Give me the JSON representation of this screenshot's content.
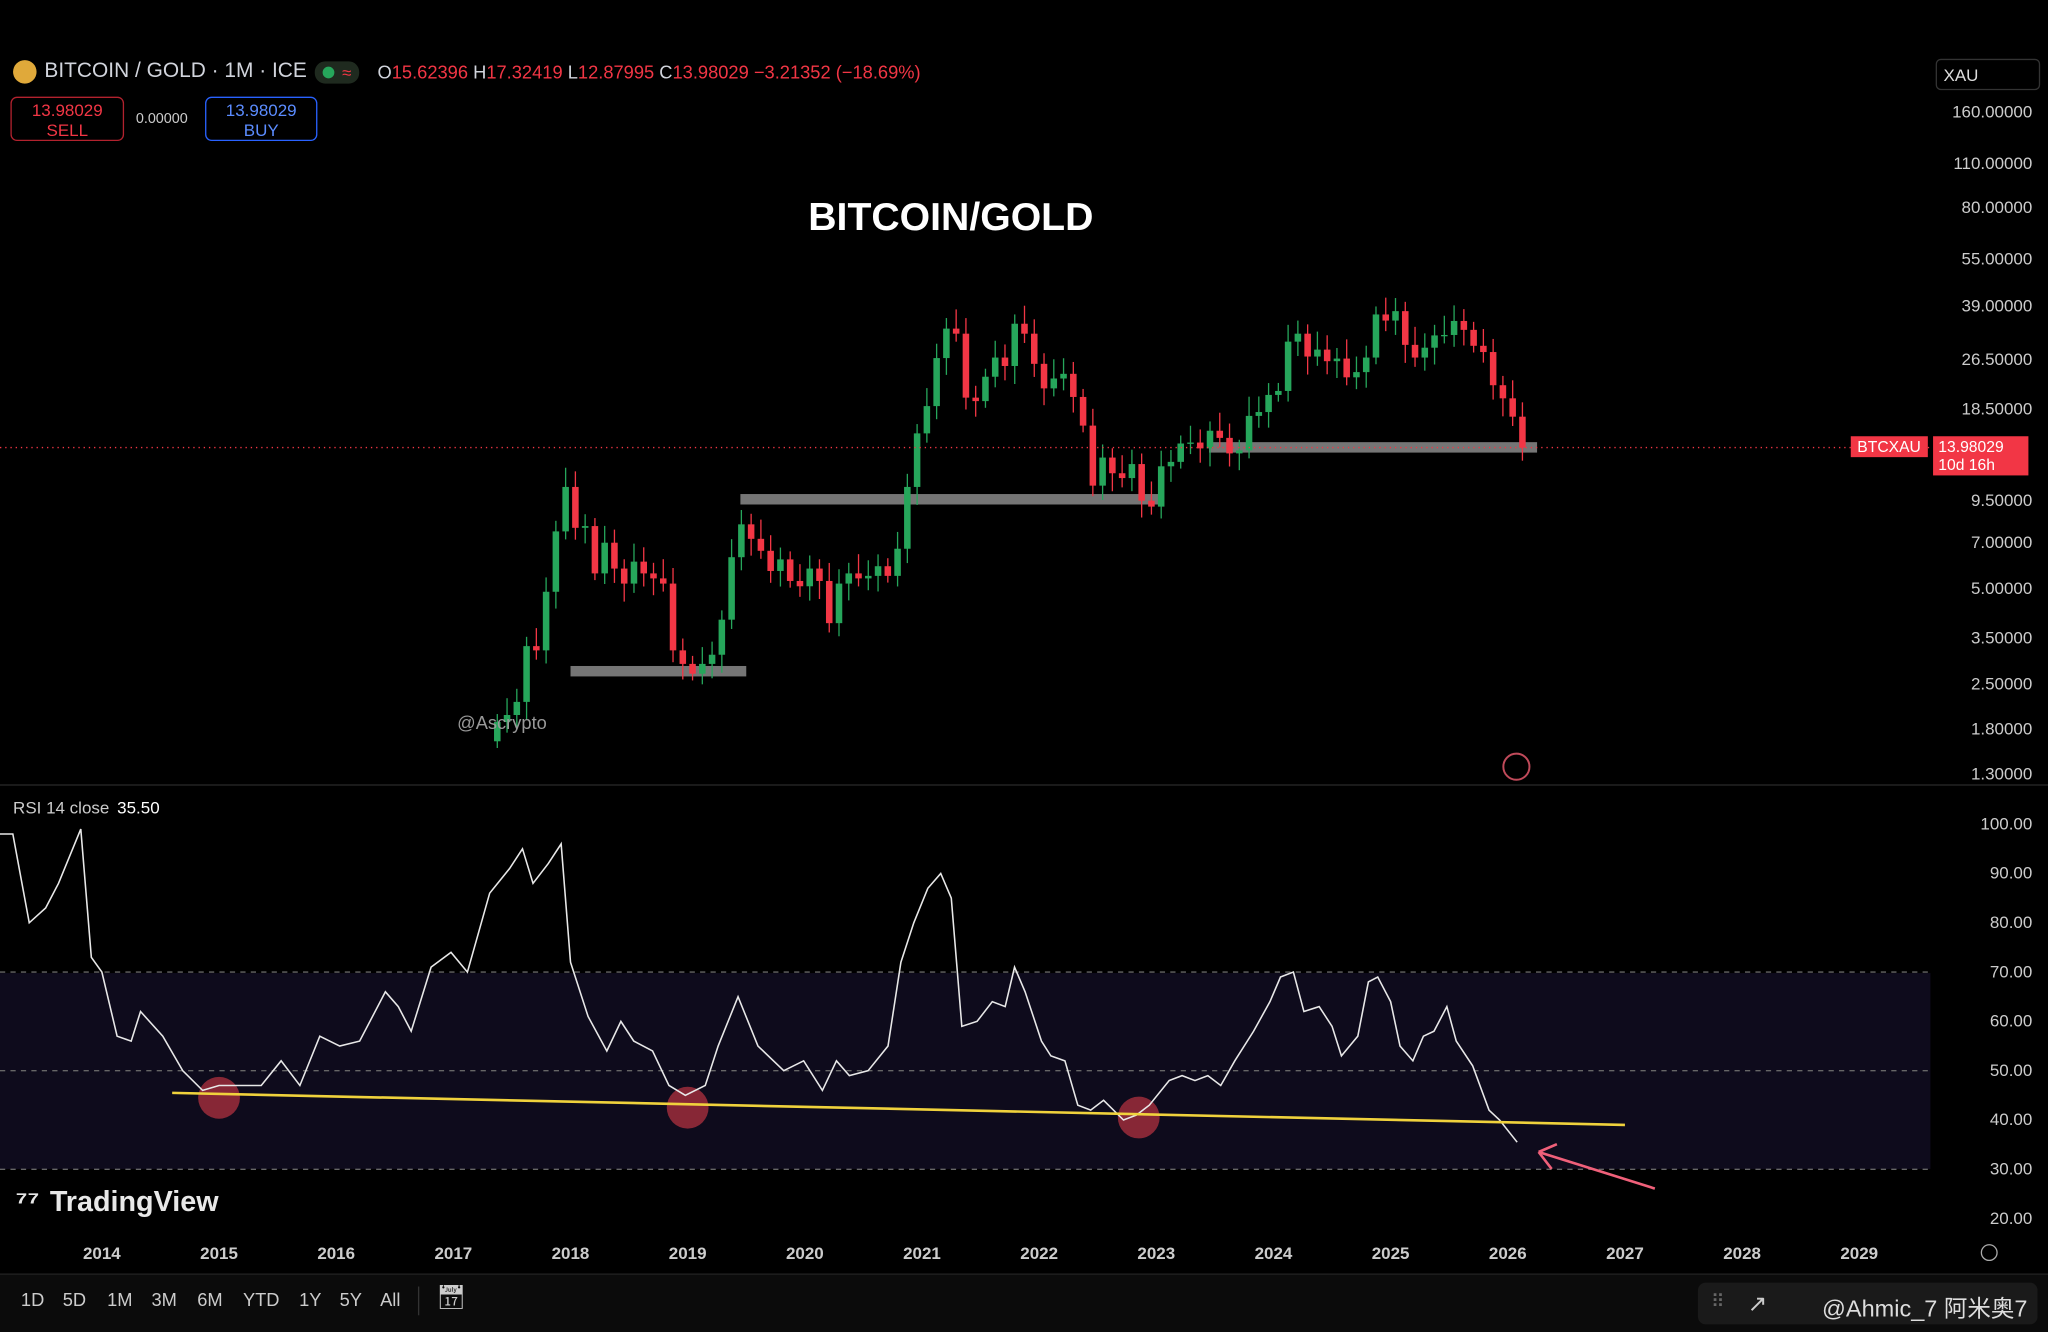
{
  "header": {
    "symbol": "BITCOIN / GOLD · 1M · ICE",
    "open_label": "O",
    "open": "15.62396",
    "high_label": "H",
    "high": "17.32419",
    "low_label": "L",
    "low": "12.87995",
    "close_label": "C",
    "close": "13.98029",
    "change": "−3.21352 (−18.69%)",
    "live_icon": "≈"
  },
  "trade": {
    "sell_price": "13.98029",
    "sell_label": "SELL",
    "spread": "0.00000",
    "buy_price": "13.98029",
    "buy_label": "BUY"
  },
  "currency": "XAU",
  "title": "BITCOIN/GOLD",
  "watermark": "@Ascrypto",
  "last_price": {
    "symbol": "BTCXAU",
    "value": "13.98029",
    "countdown": "10d 16h"
  },
  "rsi": {
    "label": "RSI 14 close",
    "value": "35.50"
  },
  "logo": "TradingView",
  "timeframes": [
    "1D",
    "5D",
    "1M",
    "3M",
    "6M",
    "YTD",
    "1Y",
    "5Y",
    "All"
  ],
  "credit": "@Ahmic_7 阿米奥7",
  "colors": {
    "up": "#26a65b",
    "down": "#f23645",
    "rsi_line": "#e8e8e8",
    "trendline": "#f0d23c",
    "arrow": "#f0607a",
    "zone": "#8a8a8a"
  },
  "chart_data": [
    {
      "type": "candlestick",
      "scale": "log",
      "price_axis": [
        "160.00000",
        "110.00000",
        "80.00000",
        "55.00000",
        "39.00000",
        "26.50000",
        "18.50000",
        "13.98029",
        "9.50000",
        "7.00000",
        "5.00000",
        "3.50000",
        "2.50000",
        "1.80000",
        "1.30000"
      ],
      "price_ticks": [
        160,
        110,
        80,
        55,
        39,
        26.5,
        18.5,
        9.5,
        7,
        5,
        3.5,
        2.5,
        1.8,
        1.3
      ],
      "start_month": "2017-05",
      "monthly_close": [
        1.9,
        2.0,
        2.2,
        3.3,
        3.2,
        4.9,
        7.6,
        10.5,
        7.8,
        7.9,
        5.6,
        7.0,
        5.8,
        5.2,
        6.1,
        5.6,
        5.4,
        5.2,
        3.2,
        2.9,
        2.7,
        2.9,
        3.1,
        4.0,
        6.3,
        8.0,
        7.2,
        6.6,
        5.7,
        6.2,
        5.3,
        5.1,
        5.8,
        5.3,
        3.9,
        5.2,
        5.6,
        5.4,
        5.5,
        5.9,
        5.5,
        6.7,
        10.5,
        15.5,
        18.9,
        26.8,
        33.2,
        32.0,
        20.1,
        19.6,
        23.4,
        26.9,
        25.3,
        34.4,
        32.0,
        25.7,
        21.5,
        23.1,
        23.9,
        20.2,
        16.4,
        10.6,
        13.0,
        11.6,
        11.2,
        12.4,
        9.5,
        9.1,
        12.2,
        12.6,
        14.4,
        14.5,
        13.9,
        15.8,
        15.0,
        13.4,
        13.7,
        17.6,
        18.1,
        20.5,
        21.1,
        30.2,
        32.0,
        27.1,
        28.5,
        26.2,
        26.7,
        23.3,
        24.2,
        26.9,
        36.8,
        35.2,
        37.7,
        29.5,
        26.9,
        28.9,
        31.6,
        31.7,
        35.1,
        32.9,
        29.3,
        28.0,
        22.0,
        20.0,
        17.5,
        13.98
      ],
      "support_zones": [
        {
          "from": 2018.0,
          "to": 2019.5,
          "price": 2.75
        },
        {
          "from": 2019.45,
          "to": 2023.05,
          "price": 9.6
        },
        {
          "from": 2023.45,
          "to": 2026.25,
          "price": 14.0
        }
      ]
    },
    {
      "type": "line",
      "title": "RSI 14 close",
      "y_axis": [
        "100.00",
        "90.00",
        "80.00",
        "70.00",
        "60.00",
        "50.00",
        "40.00",
        "30.00",
        "20.00"
      ],
      "ylim": [
        20,
        100
      ],
      "bands": [
        30,
        50,
        70
      ],
      "x_axis": [
        "2014",
        "2015",
        "2016",
        "2017",
        "2018",
        "2019",
        "2020",
        "2021",
        "2022",
        "2023",
        "2024",
        "2025",
        "2026",
        "2027",
        "2028",
        "2029"
      ],
      "points": [
        [
          2013.13,
          98
        ],
        [
          2013.24,
          98
        ],
        [
          2013.38,
          80
        ],
        [
          2013.52,
          83
        ],
        [
          2013.63,
          88
        ],
        [
          2013.82,
          99
        ],
        [
          2013.91,
          73
        ],
        [
          2014.0,
          70
        ],
        [
          2014.13,
          57
        ],
        [
          2014.25,
          56
        ],
        [
          2014.33,
          62
        ],
        [
          2014.52,
          57
        ],
        [
          2014.69,
          50
        ],
        [
          2014.86,
          46
        ],
        [
          2015.0,
          47
        ],
        [
          2015.19,
          47
        ],
        [
          2015.36,
          47
        ],
        [
          2015.53,
          52
        ],
        [
          2015.69,
          47
        ],
        [
          2015.86,
          57
        ],
        [
          2016.03,
          55
        ],
        [
          2016.2,
          56
        ],
        [
          2016.42,
          66
        ],
        [
          2016.53,
          63
        ],
        [
          2016.64,
          58
        ],
        [
          2016.81,
          71
        ],
        [
          2016.98,
          74
        ],
        [
          2017.12,
          70
        ],
        [
          2017.31,
          86
        ],
        [
          2017.48,
          91
        ],
        [
          2017.59,
          95
        ],
        [
          2017.68,
          88
        ],
        [
          2017.81,
          92
        ],
        [
          2017.92,
          96
        ],
        [
          2018.0,
          72
        ],
        [
          2018.15,
          61
        ],
        [
          2018.31,
          54
        ],
        [
          2018.43,
          60
        ],
        [
          2018.54,
          56
        ],
        [
          2018.7,
          54
        ],
        [
          2018.84,
          47
        ],
        [
          2018.98,
          45
        ],
        [
          2019.15,
          47
        ],
        [
          2019.26,
          55
        ],
        [
          2019.43,
          65
        ],
        [
          2019.6,
          55
        ],
        [
          2019.82,
          50
        ],
        [
          2019.99,
          52
        ],
        [
          2020.15,
          46
        ],
        [
          2020.27,
          52
        ],
        [
          2020.38,
          49
        ],
        [
          2020.54,
          50
        ],
        [
          2020.71,
          55
        ],
        [
          2020.82,
          72
        ],
        [
          2020.93,
          80
        ],
        [
          2021.05,
          87
        ],
        [
          2021.16,
          90
        ],
        [
          2021.25,
          85
        ],
        [
          2021.34,
          59
        ],
        [
          2021.47,
          60
        ],
        [
          2021.6,
          64
        ],
        [
          2021.71,
          63
        ],
        [
          2021.79,
          71
        ],
        [
          2021.88,
          66
        ],
        [
          2022.02,
          56
        ],
        [
          2022.1,
          53
        ],
        [
          2022.22,
          52
        ],
        [
          2022.33,
          43
        ],
        [
          2022.44,
          42
        ],
        [
          2022.55,
          44
        ],
        [
          2022.72,
          40
        ],
        [
          2022.83,
          41
        ],
        [
          2022.94,
          43
        ],
        [
          2023.11,
          48
        ],
        [
          2023.22,
          49
        ],
        [
          2023.33,
          48
        ],
        [
          2023.44,
          49
        ],
        [
          2023.55,
          47
        ],
        [
          2023.67,
          52
        ],
        [
          2023.83,
          58
        ],
        [
          2023.97,
          64
        ],
        [
          2024.06,
          69
        ],
        [
          2024.17,
          70
        ],
        [
          2024.26,
          62
        ],
        [
          2024.39,
          63
        ],
        [
          2024.5,
          59
        ],
        [
          2024.58,
          53
        ],
        [
          2024.72,
          57
        ],
        [
          2024.81,
          68
        ],
        [
          2024.89,
          69
        ],
        [
          2025.0,
          64
        ],
        [
          2025.08,
          55
        ],
        [
          2025.19,
          52
        ],
        [
          2025.28,
          57
        ],
        [
          2025.37,
          58
        ],
        [
          2025.48,
          63
        ],
        [
          2025.56,
          56
        ],
        [
          2025.7,
          51
        ],
        [
          2025.84,
          42
        ],
        [
          2025.93,
          40
        ],
        [
          2026.08,
          35.5
        ]
      ],
      "trendline": [
        [
          2014.6,
          45.5
        ],
        [
          2027.0,
          39
        ]
      ],
      "highlighted_lows": [
        [
          2015.0,
          44.5
        ],
        [
          2019.0,
          42.5
        ],
        [
          2022.85,
          40.5
        ]
      ]
    }
  ]
}
